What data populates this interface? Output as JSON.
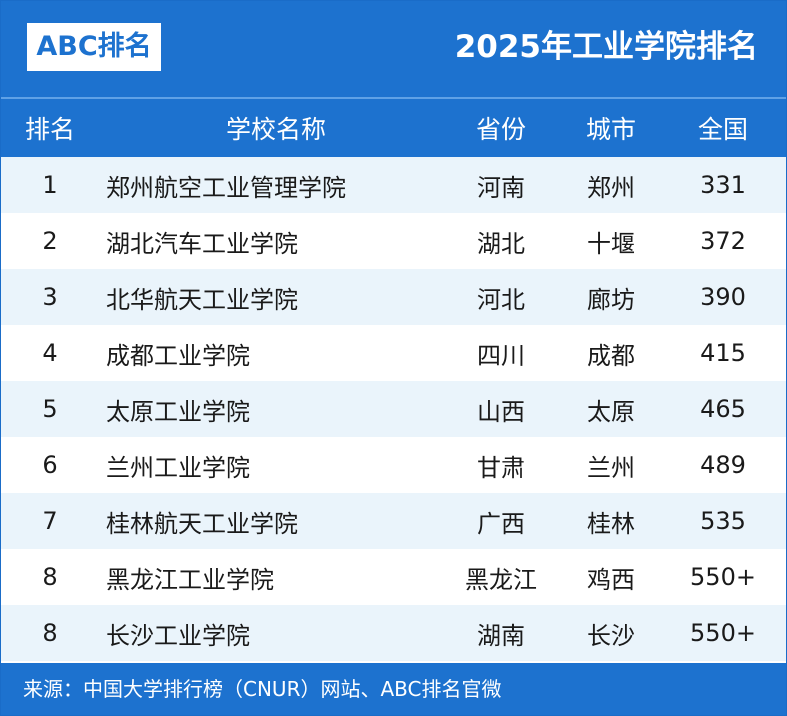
{
  "logo": "ABC排名",
  "title": "2025年工业学院排名",
  "headers": {
    "rank": "排名",
    "school": "学校名称",
    "province": "省份",
    "city": "城市",
    "national": "全国"
  },
  "rows": [
    {
      "rank": "1",
      "school": "郑州航空工业管理学院",
      "province": "河南",
      "city": "郑州",
      "national": "331"
    },
    {
      "rank": "2",
      "school": "湖北汽车工业学院",
      "province": "湖北",
      "city": "十堰",
      "national": "372"
    },
    {
      "rank": "3",
      "school": "北华航天工业学院",
      "province": "河北",
      "city": "廊坊",
      "national": "390"
    },
    {
      "rank": "4",
      "school": "成都工业学院",
      "province": "四川",
      "city": "成都",
      "national": "415"
    },
    {
      "rank": "5",
      "school": "太原工业学院",
      "province": "山西",
      "city": "太原",
      "national": "465"
    },
    {
      "rank": "6",
      "school": "兰州工业学院",
      "province": "甘肃",
      "city": "兰州",
      "national": "489"
    },
    {
      "rank": "7",
      "school": "桂林航天工业学院",
      "province": "广西",
      "city": "桂林",
      "national": "535"
    },
    {
      "rank": "8",
      "school": "黑龙江工业学院",
      "province": "黑龙江",
      "city": "鸡西",
      "national": "550+"
    },
    {
      "rank": "8",
      "school": "长沙工业学院",
      "province": "湖南",
      "city": "长沙",
      "national": "550+"
    }
  ],
  "footer": "来源：中国大学排行榜（CNUR）网站、ABC排名官微",
  "colors": {
    "primary": "#1d72cf",
    "stripe": "#eaf4fb"
  }
}
